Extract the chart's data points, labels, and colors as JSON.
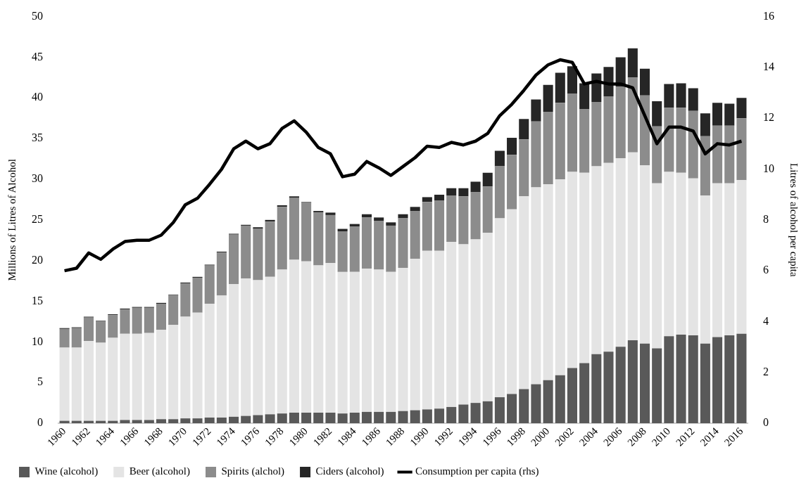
{
  "chart_data": {
    "type": "bar",
    "stacked": true,
    "categories": [
      "1960",
      null,
      "1962",
      null,
      "1964",
      null,
      "1966",
      null,
      "1968",
      null,
      "1970",
      null,
      "1972",
      null,
      "1974",
      null,
      "1976",
      null,
      "1978",
      null,
      "1980",
      null,
      "1982",
      null,
      "1984",
      null,
      "1986",
      null,
      "1988",
      null,
      "1990",
      null,
      "1992",
      null,
      "1994",
      null,
      "1996",
      null,
      "1998",
      null,
      "2000",
      null,
      "2002",
      null,
      "2004",
      null,
      "2006",
      null,
      "2008",
      null,
      "2010",
      null,
      "2012",
      null,
      "2014",
      null,
      "2016"
    ],
    "ylabel": "Millions of Litres of Alcohol",
    "y2label": "Litres of alcohol per capita",
    "ylim": [
      0,
      50
    ],
    "yticks": [
      0,
      5,
      10,
      15,
      20,
      25,
      30,
      35,
      40,
      45,
      50
    ],
    "y2lim": [
      0,
      16
    ],
    "y2ticks": [
      0,
      2,
      4,
      6,
      8,
      10,
      12,
      14,
      16
    ],
    "grid": false,
    "legend": "bottom",
    "series": [
      {
        "name": "Wine (alcohol)",
        "color": "#595959",
        "values": [
          0.3,
          0.3,
          0.3,
          0.3,
          0.3,
          0.4,
          0.4,
          0.4,
          0.5,
          0.5,
          0.6,
          0.6,
          0.7,
          0.7,
          0.8,
          0.9,
          1.0,
          1.1,
          1.2,
          1.3,
          1.3,
          1.3,
          1.3,
          1.2,
          1.3,
          1.4,
          1.4,
          1.4,
          1.5,
          1.6,
          1.7,
          1.8,
          2.0,
          2.3,
          2.5,
          2.7,
          3.2,
          3.6,
          4.2,
          4.8,
          5.3,
          5.9,
          6.8,
          7.4,
          8.5,
          8.8,
          9.4,
          10.2,
          9.8,
          9.2,
          10.7,
          10.9,
          10.8,
          9.8,
          10.6,
          10.8,
          11.0
        ]
      },
      {
        "name": "Beer (alcohol)",
        "color": "#e4e4e4",
        "values": [
          9.0,
          9.0,
          9.8,
          9.6,
          10.2,
          10.6,
          10.6,
          10.7,
          11.0,
          11.6,
          12.5,
          13.0,
          14.0,
          15.0,
          16.3,
          16.9,
          16.6,
          16.9,
          17.7,
          18.8,
          18.6,
          18.1,
          18.4,
          17.4,
          17.3,
          17.6,
          17.5,
          17.2,
          17.6,
          18.6,
          19.5,
          19.4,
          20.3,
          19.7,
          20.1,
          20.7,
          22.0,
          22.7,
          23.7,
          24.2,
          24.1,
          24.1,
          24.1,
          23.4,
          23.1,
          23.2,
          23.2,
          23.1,
          21.9,
          20.3,
          20.2,
          19.9,
          19.3,
          18.2,
          18.9,
          18.7,
          18.9
        ]
      },
      {
        "name": "Spirits (alchol)",
        "color": "#8c8c8c",
        "values": [
          2.3,
          2.4,
          2.9,
          2.6,
          2.8,
          3.0,
          3.2,
          3.1,
          3.2,
          3.6,
          4.1,
          4.3,
          4.7,
          5.3,
          6.1,
          6.5,
          6.3,
          6.8,
          7.7,
          7.6,
          7.2,
          6.5,
          5.9,
          5.0,
          5.6,
          6.3,
          6.0,
          5.7,
          6.1,
          5.9,
          6.0,
          6.2,
          5.7,
          5.9,
          5.8,
          5.7,
          6.4,
          6.7,
          7.0,
          8.1,
          8.9,
          9.4,
          9.6,
          7.8,
          7.9,
          8.2,
          8.8,
          9.2,
          8.6,
          7.0,
          7.9,
          8.0,
          8.3,
          7.3,
          7.1,
          7.1,
          7.6
        ]
      },
      {
        "name": "Ciders (alcohol)",
        "color": "#262626",
        "values": [
          0.1,
          0.1,
          0.1,
          0.1,
          0.1,
          0.1,
          0.1,
          0.1,
          0.1,
          0.1,
          0.1,
          0.1,
          0.1,
          0.1,
          0.1,
          0.1,
          0.2,
          0.2,
          0.2,
          0.2,
          0.1,
          0.2,
          0.3,
          0.3,
          0.3,
          0.4,
          0.4,
          0.4,
          0.5,
          0.5,
          0.6,
          0.7,
          0.9,
          1.0,
          1.3,
          1.7,
          1.9,
          2.1,
          2.5,
          2.7,
          3.3,
          3.7,
          3.4,
          3.2,
          3.5,
          3.6,
          3.6,
          3.6,
          3.3,
          3.1,
          2.9,
          3.0,
          2.8,
          2.8,
          2.8,
          2.7,
          2.5
        ]
      },
      {
        "name": "Consumption per capita (rhs)",
        "type": "line",
        "axis": "y2",
        "color": "#000000",
        "marker": "none",
        "values": [
          6.0,
          6.1,
          6.7,
          6.45,
          6.85,
          7.15,
          7.2,
          7.2,
          7.4,
          7.9,
          8.6,
          8.85,
          9.4,
          10.0,
          10.8,
          11.1,
          10.8,
          11.0,
          11.6,
          11.9,
          11.45,
          10.85,
          10.6,
          9.7,
          9.8,
          10.3,
          10.05,
          9.75,
          10.1,
          10.45,
          10.9,
          10.85,
          11.05,
          10.95,
          11.1,
          11.4,
          12.1,
          12.55,
          13.1,
          13.7,
          14.1,
          14.3,
          14.2,
          13.35,
          13.45,
          13.35,
          13.35,
          13.2,
          12.1,
          11.0,
          11.65,
          11.65,
          11.5,
          10.6,
          11.0,
          10.95,
          11.1
        ]
      }
    ]
  }
}
